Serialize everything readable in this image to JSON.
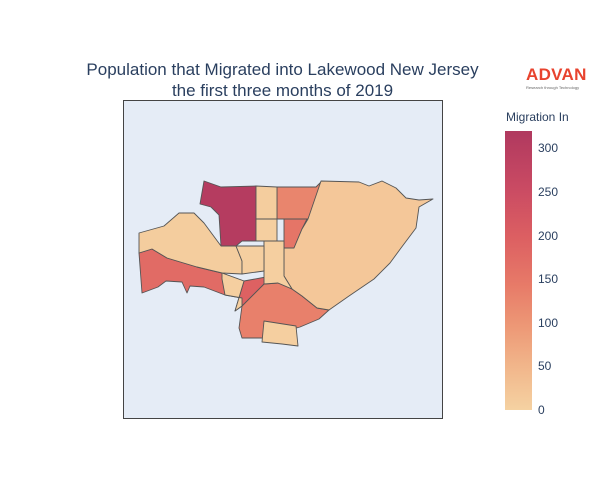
{
  "title": {
    "line1": "Population that Migrated into Lakewood New Jersey",
    "line2": "the first three months of 2019"
  },
  "logo": {
    "brand": "ADVAN",
    "tagline": "Research through Technology"
  },
  "colorbar": {
    "title": "Migration In",
    "min": 0,
    "max": 320,
    "ticks": [
      "300",
      "250",
      "200",
      "150",
      "100",
      "50",
      "0"
    ],
    "colorscale": [
      "#f5d2a2",
      "#f1b58a",
      "#ed9876",
      "#e77a68",
      "#dc5f62",
      "#c94a63",
      "#b0395f"
    ]
  },
  "chart_data": {
    "type": "choropleth",
    "region": "Lakewood, New Jersey",
    "value_label": "Migration In",
    "regions": [
      {
        "id": "northwest-tract",
        "value": 310
      },
      {
        "id": "north-center-tract",
        "value": 140
      },
      {
        "id": "west-tract",
        "value": 190
      },
      {
        "id": "south-tract",
        "value": 150
      },
      {
        "id": "south-west-tract",
        "value": 210
      },
      {
        "id": "center-small-tract",
        "value": 170
      },
      {
        "id": "east-tract",
        "value": 20
      },
      {
        "id": "southeast-tract",
        "value": 15
      },
      {
        "id": "north-tract-2",
        "value": 10
      },
      {
        "id": "west-upper-tract",
        "value": 10
      },
      {
        "id": "center-tract-1",
        "value": 5
      },
      {
        "id": "center-tract-2",
        "value": 5
      },
      {
        "id": "center-tract-3",
        "value": 5
      },
      {
        "id": "south-strip-tract",
        "value": 5
      },
      {
        "id": "bottom-tract",
        "value": 5
      }
    ]
  }
}
